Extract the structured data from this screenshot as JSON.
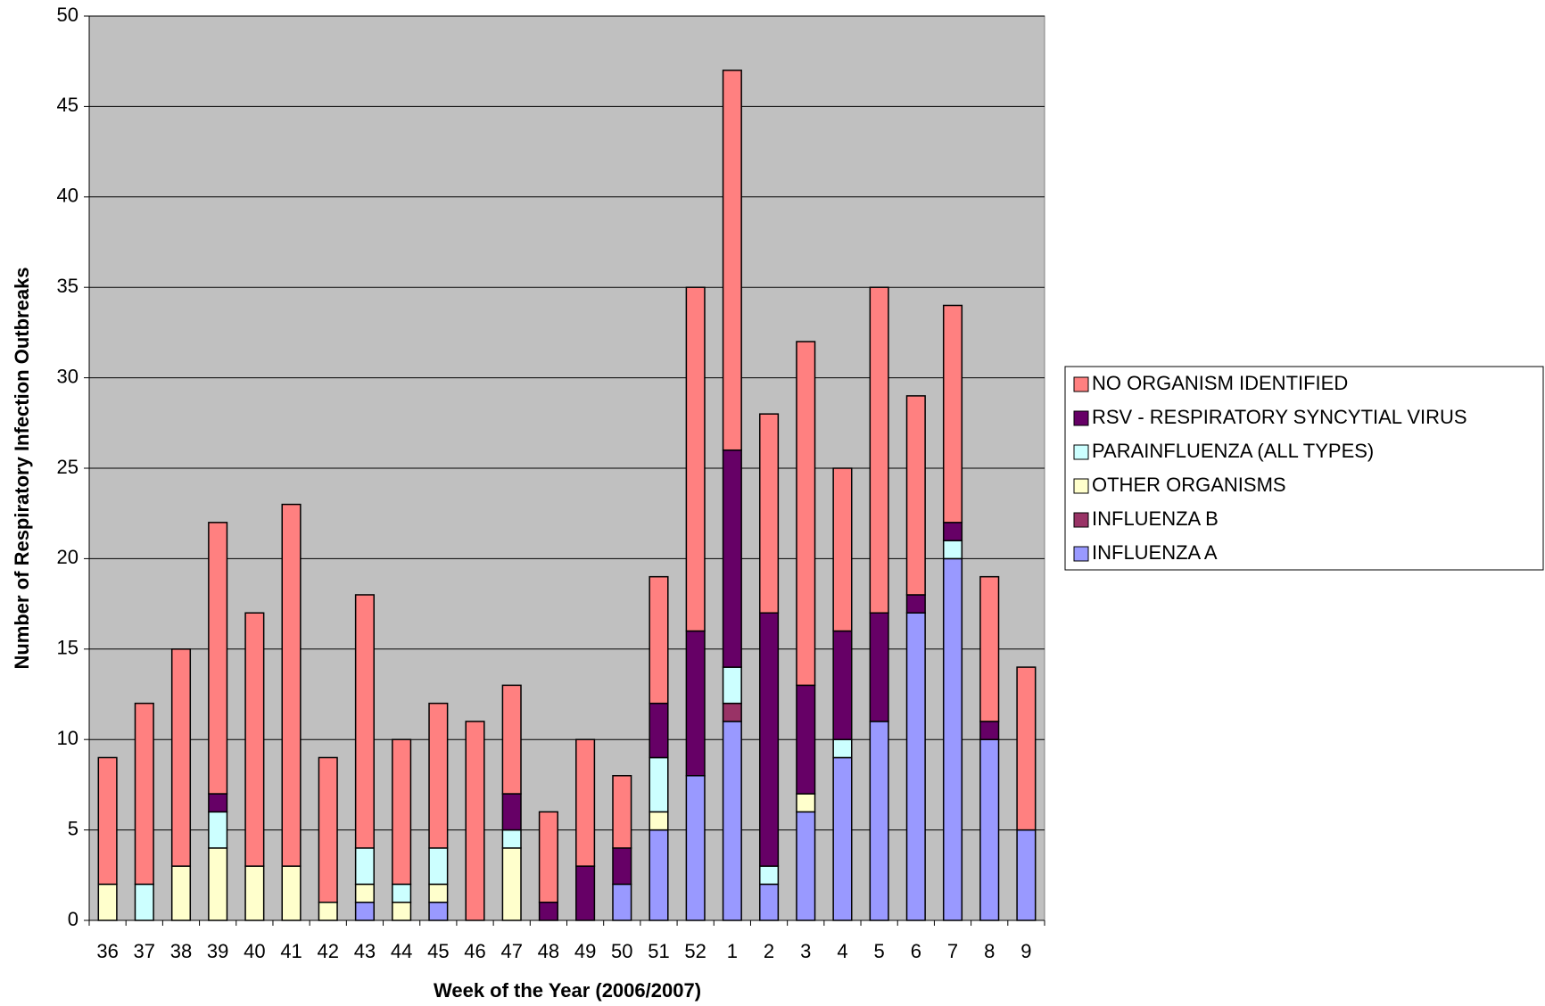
{
  "chart_data": {
    "type": "stacked_bar",
    "x_label": "Week of the Year (2006/2007)",
    "y_label": "Number of Respiratory Infection Outbreaks",
    "categories": [
      "36",
      "37",
      "38",
      "39",
      "40",
      "41",
      "42",
      "43",
      "44",
      "45",
      "46",
      "47",
      "48",
      "49",
      "50",
      "51",
      "52",
      "1",
      "2",
      "3",
      "4",
      "5",
      "6",
      "7",
      "8",
      "9"
    ],
    "series": [
      {
        "name": "INFLUENZA A",
        "color": "#9999ff",
        "values": [
          0,
          0,
          0,
          0,
          0,
          0,
          0,
          1,
          0,
          1,
          0,
          0,
          0,
          0,
          2,
          5,
          8,
          11,
          2,
          6,
          9,
          11,
          17,
          20,
          10,
          5
        ]
      },
      {
        "name": "INFLUENZA B",
        "color": "#993366",
        "values": [
          0,
          0,
          0,
          0,
          0,
          0,
          0,
          0,
          0,
          0,
          0,
          0,
          0,
          0,
          0,
          0,
          0,
          1,
          0,
          0,
          0,
          0,
          0,
          0,
          0,
          0
        ]
      },
      {
        "name": "OTHER ORGANISMS",
        "color": "#ffffcc",
        "values": [
          2,
          0,
          3,
          4,
          3,
          3,
          1,
          1,
          1,
          1,
          0,
          4,
          0,
          0,
          0,
          1,
          0,
          0,
          0,
          1,
          0,
          0,
          0,
          0,
          0,
          0
        ]
      },
      {
        "name": "PARAINFLUENZA (ALL TYPES)",
        "color": "#ccffff",
        "values": [
          0,
          2,
          0,
          2,
          0,
          0,
          0,
          2,
          1,
          2,
          0,
          1,
          0,
          0,
          0,
          3,
          0,
          2,
          1,
          0,
          1,
          0,
          0,
          1,
          0,
          0
        ]
      },
      {
        "name": "RSV - RESPIRATORY SYNCYTIAL VIRUS",
        "color": "#660066",
        "values": [
          0,
          0,
          0,
          1,
          0,
          0,
          0,
          0,
          0,
          0,
          0,
          2,
          1,
          3,
          2,
          3,
          8,
          12,
          14,
          6,
          6,
          6,
          1,
          1,
          1,
          0
        ]
      },
      {
        "name": "NO ORGANISM IDENTIFIED",
        "color": "#ff8080",
        "values": [
          7,
          10,
          12,
          15,
          14,
          20,
          8,
          14,
          8,
          8,
          11,
          6,
          5,
          7,
          4,
          7,
          19,
          21,
          11,
          19,
          9,
          18,
          11,
          12,
          8,
          9
        ]
      }
    ],
    "ylim": [
      0,
      50
    ],
    "yticks": [
      0,
      5,
      10,
      15,
      20,
      25,
      30,
      35,
      40,
      45,
      50
    ],
    "grid": true,
    "plot_background": "#c0c0c0",
    "legend_position": "right"
  }
}
